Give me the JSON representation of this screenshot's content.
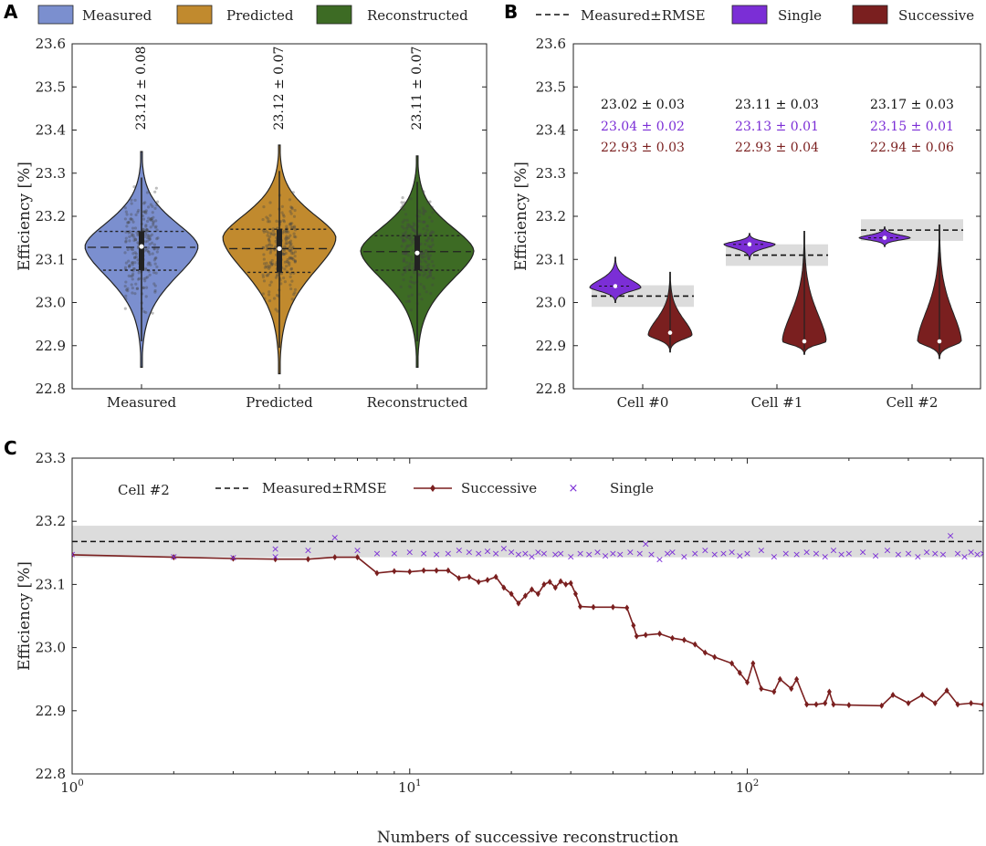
{
  "colors": {
    "measured": "#7b8fcf",
    "predicted": "#c18a2e",
    "reconstructed": "#3d6b24",
    "single": "#7b2ed6",
    "successive": "#7a1f1f",
    "band": "#dcdcdc",
    "annotation_black": "#111111"
  },
  "chart_data": [
    {
      "panel": "A",
      "type": "violin",
      "ylabel": "Efficiency [%]",
      "ylim": [
        22.8,
        23.6
      ],
      "yticks": [
        "22.8",
        "22.9",
        "23.0",
        "23.1",
        "23.2",
        "23.3",
        "23.4",
        "23.5",
        "23.6"
      ],
      "legend": [
        {
          "label": "Measured",
          "color_key": "measured"
        },
        {
          "label": "Predicted",
          "color_key": "predicted"
        },
        {
          "label": "Reconstructed",
          "color_key": "reconstructed"
        }
      ],
      "categories": [
        "Measured",
        "Predicted",
        "Reconstructed"
      ],
      "violins": [
        {
          "name": "Measured",
          "color_key": "measured",
          "min": 22.85,
          "max": 23.35,
          "q1": 23.075,
          "median": 23.13,
          "q3": 23.165,
          "mean_line": 23.128,
          "peak": 23.13,
          "annotation": "23.12 ± 0.08"
        },
        {
          "name": "Predicted",
          "color_key": "predicted",
          "min": 22.835,
          "max": 23.365,
          "q1": 23.07,
          "median": 23.125,
          "q3": 23.17,
          "mean_line": 23.125,
          "peak": 23.15,
          "annotation": "23.12 ± 0.07"
        },
        {
          "name": "Reconstructed",
          "color_key": "reconstructed",
          "min": 22.85,
          "max": 23.34,
          "q1": 23.075,
          "median": 23.115,
          "q3": 23.155,
          "mean_line": 23.118,
          "peak": 23.12,
          "annotation": "23.11 ± 0.07"
        }
      ]
    },
    {
      "panel": "B",
      "type": "violin",
      "ylabel": "Efficiency [%]",
      "ylim": [
        22.8,
        23.6
      ],
      "yticks": [
        "22.8",
        "22.9",
        "23.0",
        "23.1",
        "23.2",
        "23.3",
        "23.4",
        "23.5",
        "23.6"
      ],
      "legend": [
        {
          "label": "Measured±RMSE",
          "style": "dashed"
        },
        {
          "label": "Single",
          "color_key": "single"
        },
        {
          "label": "Successive",
          "color_key": "successive"
        }
      ],
      "categories": [
        "Cell #0",
        "Cell #1",
        "Cell #2"
      ],
      "cells": [
        {
          "name": "Cell #0",
          "measured": 23.015,
          "rmse": 0.025,
          "single": {
            "min": 23.0,
            "max": 23.105,
            "median": 23.038,
            "peak": 23.035
          },
          "successive": {
            "min": 22.885,
            "max": 23.07,
            "median": 22.93,
            "peak": 22.925
          },
          "annotations": [
            "23.02 ± 0.03",
            "23.04 ± 0.02",
            "22.93 ± 0.03"
          ]
        },
        {
          "name": "Cell #1",
          "measured": 23.11,
          "rmse": 0.025,
          "single": {
            "min": 23.1,
            "max": 23.16,
            "median": 23.135,
            "peak": 23.135
          },
          "successive": {
            "min": 22.88,
            "max": 23.165,
            "median": 22.91,
            "peak": 22.91
          },
          "annotations": [
            "23.11 ± 0.03",
            "23.13 ± 0.01",
            "22.93 ± 0.04"
          ]
        },
        {
          "name": "Cell #2",
          "measured": 23.168,
          "rmse": 0.025,
          "single": {
            "min": 23.13,
            "max": 23.175,
            "median": 23.15,
            "peak": 23.15
          },
          "successive": {
            "min": 22.87,
            "max": 23.18,
            "median": 22.91,
            "peak": 22.91
          },
          "annotations": [
            "23.17 ± 0.03",
            "23.15 ± 0.01",
            "22.94 ± 0.06"
          ]
        }
      ]
    },
    {
      "panel": "C",
      "type": "line+scatter",
      "xscale": "log",
      "xlim": [
        1,
        500
      ],
      "ylim": [
        22.8,
        23.3
      ],
      "xlabel": "Numbers of successive reconstruction",
      "ylabel": "Efficiency [%]",
      "yticks": [
        "22.8",
        "22.9",
        "23.0",
        "23.1",
        "23.2",
        "23.3"
      ],
      "xticks": [
        {
          "value": 1,
          "base": "10",
          "exp": "0"
        },
        {
          "value": 10,
          "base": "10",
          "exp": "1"
        },
        {
          "value": 100,
          "base": "10",
          "exp": "2"
        }
      ],
      "cell_label": "Cell #2",
      "measured": 23.168,
      "rmse": 0.025,
      "legend": [
        {
          "label": "Measured±RMSE",
          "style": "dashed"
        },
        {
          "label": "Successive",
          "color_key": "successive"
        },
        {
          "label": "Single",
          "color_key": "single"
        }
      ],
      "successive_points": [
        [
          1,
          23.147
        ],
        [
          2,
          23.143
        ],
        [
          3,
          23.141
        ],
        [
          4,
          23.14
        ],
        [
          5,
          23.14
        ],
        [
          6,
          23.143
        ],
        [
          7,
          23.143
        ],
        [
          8,
          23.118
        ],
        [
          9,
          23.121
        ],
        [
          10,
          23.12
        ],
        [
          11,
          23.122
        ],
        [
          12,
          23.122
        ],
        [
          13,
          23.122
        ],
        [
          14,
          23.11
        ],
        [
          15,
          23.112
        ],
        [
          16,
          23.104
        ],
        [
          17,
          23.107
        ],
        [
          18,
          23.112
        ],
        [
          19,
          23.095
        ],
        [
          20,
          23.085
        ],
        [
          21,
          23.07
        ],
        [
          22,
          23.082
        ],
        [
          23,
          23.092
        ],
        [
          24,
          23.085
        ],
        [
          25,
          23.1
        ],
        [
          26,
          23.104
        ],
        [
          27,
          23.095
        ],
        [
          28,
          23.105
        ],
        [
          29,
          23.1
        ],
        [
          30,
          23.102
        ],
        [
          31,
          23.085
        ],
        [
          32,
          23.065
        ],
        [
          35,
          23.064
        ],
        [
          40,
          23.064
        ],
        [
          44,
          23.063
        ],
        [
          46,
          23.035
        ],
        [
          47,
          23.018
        ],
        [
          50,
          23.02
        ],
        [
          55,
          23.022
        ],
        [
          60,
          23.015
        ],
        [
          65,
          23.012
        ],
        [
          70,
          23.005
        ],
        [
          75,
          22.992
        ],
        [
          80,
          22.985
        ],
        [
          90,
          22.975
        ],
        [
          95,
          22.96
        ],
        [
          100,
          22.945
        ],
        [
          104,
          22.975
        ],
        [
          110,
          22.935
        ],
        [
          120,
          22.93
        ],
        [
          125,
          22.95
        ],
        [
          135,
          22.935
        ],
        [
          140,
          22.95
        ],
        [
          150,
          22.91
        ],
        [
          160,
          22.91
        ],
        [
          170,
          22.912
        ],
        [
          175,
          22.93
        ],
        [
          180,
          22.91
        ],
        [
          200,
          22.909
        ],
        [
          250,
          22.908
        ],
        [
          270,
          22.925
        ],
        [
          300,
          22.912
        ],
        [
          330,
          22.925
        ],
        [
          360,
          22.912
        ],
        [
          390,
          22.932
        ],
        [
          420,
          22.91
        ],
        [
          460,
          22.912
        ],
        [
          500,
          22.91
        ]
      ],
      "single_points": [
        [
          1,
          23.148
        ],
        [
          2,
          23.145
        ],
        [
          3,
          23.143
        ],
        [
          4,
          23.157
        ],
        [
          4,
          23.145
        ],
        [
          5,
          23.155
        ],
        [
          6,
          23.175
        ],
        [
          7,
          23.155
        ],
        [
          8,
          23.15
        ],
        [
          9,
          23.15
        ],
        [
          10,
          23.152
        ],
        [
          11,
          23.15
        ],
        [
          12,
          23.148
        ],
        [
          13,
          23.15
        ],
        [
          14,
          23.155
        ],
        [
          15,
          23.152
        ],
        [
          16,
          23.15
        ],
        [
          17,
          23.153
        ],
        [
          18,
          23.15
        ],
        [
          19,
          23.158
        ],
        [
          20,
          23.152
        ],
        [
          21,
          23.148
        ],
        [
          22,
          23.15
        ],
        [
          23,
          23.145
        ],
        [
          24,
          23.152
        ],
        [
          25,
          23.15
        ],
        [
          27,
          23.148
        ],
        [
          28,
          23.15
        ],
        [
          30,
          23.145
        ],
        [
          32,
          23.15
        ],
        [
          34,
          23.148
        ],
        [
          36,
          23.152
        ],
        [
          38,
          23.146
        ],
        [
          40,
          23.15
        ],
        [
          42,
          23.148
        ],
        [
          45,
          23.152
        ],
        [
          48,
          23.15
        ],
        [
          50,
          23.165
        ],
        [
          52,
          23.148
        ],
        [
          55,
          23.14
        ],
        [
          58,
          23.15
        ],
        [
          60,
          23.152
        ],
        [
          65,
          23.145
        ],
        [
          70,
          23.15
        ],
        [
          75,
          23.155
        ],
        [
          80,
          23.148
        ],
        [
          85,
          23.15
        ],
        [
          90,
          23.152
        ],
        [
          95,
          23.146
        ],
        [
          100,
          23.15
        ],
        [
          110,
          23.155
        ],
        [
          120,
          23.145
        ],
        [
          130,
          23.15
        ],
        [
          140,
          23.148
        ],
        [
          150,
          23.152
        ],
        [
          160,
          23.15
        ],
        [
          170,
          23.145
        ],
        [
          180,
          23.155
        ],
        [
          190,
          23.148
        ],
        [
          200,
          23.15
        ],
        [
          220,
          23.152
        ],
        [
          240,
          23.146
        ],
        [
          260,
          23.155
        ],
        [
          280,
          23.148
        ],
        [
          300,
          23.15
        ],
        [
          320,
          23.145
        ],
        [
          340,
          23.152
        ],
        [
          360,
          23.15
        ],
        [
          380,
          23.148
        ],
        [
          400,
          23.178
        ],
        [
          420,
          23.15
        ],
        [
          440,
          23.145
        ],
        [
          460,
          23.152
        ],
        [
          480,
          23.148
        ],
        [
          500,
          23.15
        ]
      ]
    }
  ]
}
